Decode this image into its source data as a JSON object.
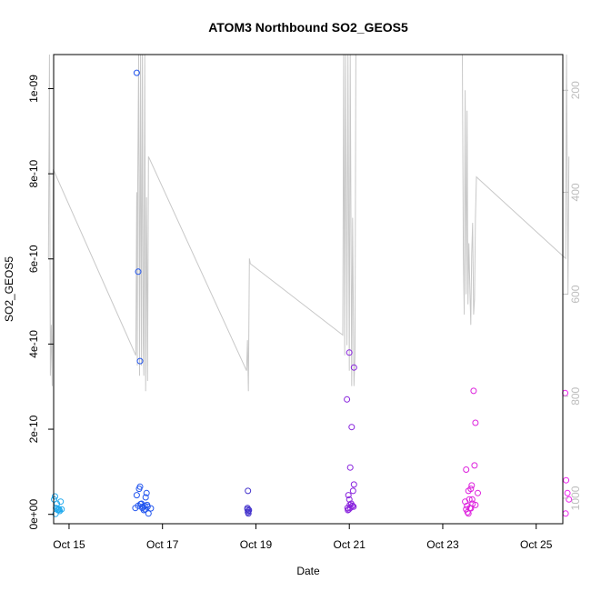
{
  "chart_data": {
    "type": "scatter",
    "title": "ATOM3 Northbound SO2_GEOS5",
    "xlabel": "Date",
    "ylabel": "SO2_GEOS5",
    "x_ticks": [
      {
        "value": 0,
        "label": "Oct 15"
      },
      {
        "value": 2,
        "label": "Oct 17"
      },
      {
        "value": 4,
        "label": "Oct 19"
      },
      {
        "value": 6,
        "label": "Oct 21"
      },
      {
        "value": 8,
        "label": "Oct 23"
      },
      {
        "value": 10,
        "label": "Oct 25"
      }
    ],
    "xlim": [
      -0.33,
      10.57
    ],
    "ylim": [
      -2.2e-11,
      1.08e-09
    ],
    "y_ticks": [
      {
        "value": 0,
        "label": "0e+00"
      },
      {
        "value": 2e-10,
        "label": "2e-10"
      },
      {
        "value": 4e-10,
        "label": "4e-10"
      },
      {
        "value": 6e-10,
        "label": "6e-10"
      },
      {
        "value": 8e-10,
        "label": "8e-10"
      },
      {
        "value": 1e-09,
        "label": "1e-09"
      }
    ],
    "y2_axis": {
      "note": "secondary pressure axis (hPa), inverted",
      "ylim": [
        1050,
        130
      ],
      "ticks": [
        200,
        400,
        600,
        800,
        1000
      ],
      "color": "#bdbdbd"
    },
    "series": [
      {
        "color": "#22aaee",
        "points": [
          [
            -0.32,
            3.5e-11
          ],
          [
            -0.3,
            4.2e-11
          ],
          [
            -0.28,
            1.5e-11
          ],
          [
            -0.26,
            2.5e-11
          ],
          [
            -0.24,
            1e-11
          ],
          [
            -0.22,
            1.2e-11
          ],
          [
            -0.2,
            8e-12
          ],
          [
            -0.18,
            3e-11
          ],
          [
            -0.16,
            1.2e-11
          ],
          [
            -0.29,
            1e-12
          ],
          [
            -0.25,
            1.4e-11
          ],
          [
            -0.21,
            1.1e-11
          ]
        ]
      },
      {
        "color": "#2255ee",
        "points": [
          [
            1.45,
            1.037e-09
          ],
          [
            1.48,
            5.7e-10
          ],
          [
            1.52,
            3.6e-10
          ],
          [
            1.42,
            1.5e-11
          ],
          [
            1.45,
            4.5e-11
          ],
          [
            1.48,
            2e-11
          ],
          [
            1.5,
            6e-11
          ],
          [
            1.52,
            6.5e-11
          ],
          [
            1.55,
            2.5e-11
          ],
          [
            1.57,
            1.5e-11
          ],
          [
            1.6,
            1e-11
          ],
          [
            1.62,
            2e-11
          ],
          [
            1.64,
            4e-11
          ],
          [
            1.66,
            5e-11
          ],
          [
            1.68,
            1.8e-11
          ],
          [
            1.7,
            2e-12
          ],
          [
            1.75,
            1.4e-11
          ],
          [
            1.58,
            1.8e-11
          ],
          [
            1.63,
            1.2e-11
          ],
          [
            1.67,
            2.2e-11
          ],
          [
            1.53,
            2.4e-11
          ]
        ]
      },
      {
        "color": "#4433cc",
        "points": [
          [
            3.83,
            5.5e-11
          ],
          [
            3.82,
            1.2e-11
          ],
          [
            3.84,
            8e-12
          ],
          [
            3.83,
            5e-12
          ],
          [
            3.85,
            1e-11
          ],
          [
            3.84,
            2e-12
          ],
          [
            3.82,
            1.5e-11
          ]
        ]
      },
      {
        "color": "#8822dd",
        "points": [
          [
            5.95,
            2.7e-10
          ],
          [
            6.0,
            3.8e-10
          ],
          [
            6.1,
            3.45e-10
          ],
          [
            6.05,
            2.05e-10
          ],
          [
            6.02,
            1.1e-10
          ],
          [
            6.1,
            7e-11
          ],
          [
            6.08,
            5.5e-11
          ],
          [
            5.98,
            4.5e-11
          ],
          [
            6.0,
            3.5e-11
          ],
          [
            6.04,
            2.5e-11
          ],
          [
            6.06,
            2e-11
          ],
          [
            5.96,
            1.5e-11
          ],
          [
            5.97,
            1e-11
          ],
          [
            5.99,
            1.2e-11
          ],
          [
            6.02,
            1.5e-11
          ],
          [
            6.07,
            2e-11
          ],
          [
            6.09,
            1.8e-11
          ],
          [
            6.01,
            2.2e-11
          ]
        ]
      },
      {
        "color": "#dd22dd",
        "points": [
          [
            8.66,
            2.9e-10
          ],
          [
            8.7,
            2.15e-10
          ],
          [
            8.68,
            1.15e-10
          ],
          [
            8.5,
            1.05e-10
          ],
          [
            8.62,
            6.8e-11
          ],
          [
            8.55,
            5.5e-11
          ],
          [
            8.6,
            6e-11
          ],
          [
            8.75,
            5e-11
          ],
          [
            8.48,
            3e-11
          ],
          [
            8.52,
            2e-11
          ],
          [
            8.57,
            3.5e-11
          ],
          [
            8.64,
            2.5e-11
          ],
          [
            8.7,
            2.2e-11
          ],
          [
            8.5,
            1.2e-11
          ],
          [
            8.53,
            5e-12
          ],
          [
            8.58,
            1.5e-11
          ],
          [
            8.55,
            2e-12
          ],
          [
            8.6,
            1.4e-11
          ],
          [
            8.63,
            3.5e-11
          ]
        ]
      },
      {
        "color": "#ee22ee",
        "points": [
          [
            10.62,
            2.85e-10
          ],
          [
            10.64,
            8e-11
          ],
          [
            10.67,
            5e-11
          ],
          [
            10.7,
            3.5e-11
          ],
          [
            10.63,
            2e-12
          ]
        ]
      }
    ],
    "pressure_line": {
      "color": "#c8c8c8",
      "points": [
        [
          -0.44,
          530
        ],
        [
          -0.42,
          130
        ],
        [
          -0.4,
          760
        ],
        [
          -0.38,
          660
        ],
        [
          -0.36,
          780
        ],
        [
          -0.34,
          355
        ],
        [
          1.43,
          720
        ],
        [
          1.45,
          400
        ],
        [
          1.46,
          740
        ],
        [
          1.47,
          380
        ],
        [
          1.49,
          130
        ],
        [
          1.51,
          760
        ],
        [
          1.53,
          130
        ],
        [
          1.55,
          740
        ],
        [
          1.57,
          130
        ],
        [
          1.59,
          700
        ],
        [
          1.6,
          760
        ],
        [
          1.62,
          130
        ],
        [
          1.64,
          790
        ],
        [
          1.66,
          410
        ],
        [
          1.68,
          770
        ],
        [
          1.7,
          330
        ],
        [
          3.8,
          750
        ],
        [
          3.82,
          690
        ],
        [
          3.84,
          790
        ],
        [
          3.86,
          530
        ],
        [
          3.88,
          540
        ],
        [
          5.86,
          680
        ],
        [
          5.88,
          130
        ],
        [
          5.9,
          720
        ],
        [
          5.92,
          130
        ],
        [
          5.95,
          700
        ],
        [
          5.97,
          130
        ],
        [
          6.0,
          750
        ],
        [
          6.02,
          130
        ],
        [
          6.05,
          780
        ],
        [
          6.07,
          450
        ],
        [
          6.1,
          780
        ],
        [
          6.12,
          720
        ],
        [
          6.14,
          130
        ],
        [
          8.42,
          130
        ],
        [
          8.44,
          520
        ],
        [
          8.46,
          640
        ],
        [
          8.48,
          200
        ],
        [
          8.5,
          600
        ],
        [
          8.52,
          240
        ],
        [
          8.54,
          620
        ],
        [
          8.56,
          500
        ],
        [
          8.58,
          590
        ],
        [
          8.6,
          660
        ],
        [
          8.62,
          520
        ],
        [
          8.64,
          460
        ],
        [
          8.66,
          640
        ],
        [
          8.68,
          610
        ],
        [
          8.7,
          450
        ],
        [
          8.72,
          370
        ],
        [
          10.63,
          530
        ],
        [
          10.65,
          130
        ],
        [
          10.68,
          600
        ],
        [
          10.7,
          330
        ]
      ]
    }
  }
}
